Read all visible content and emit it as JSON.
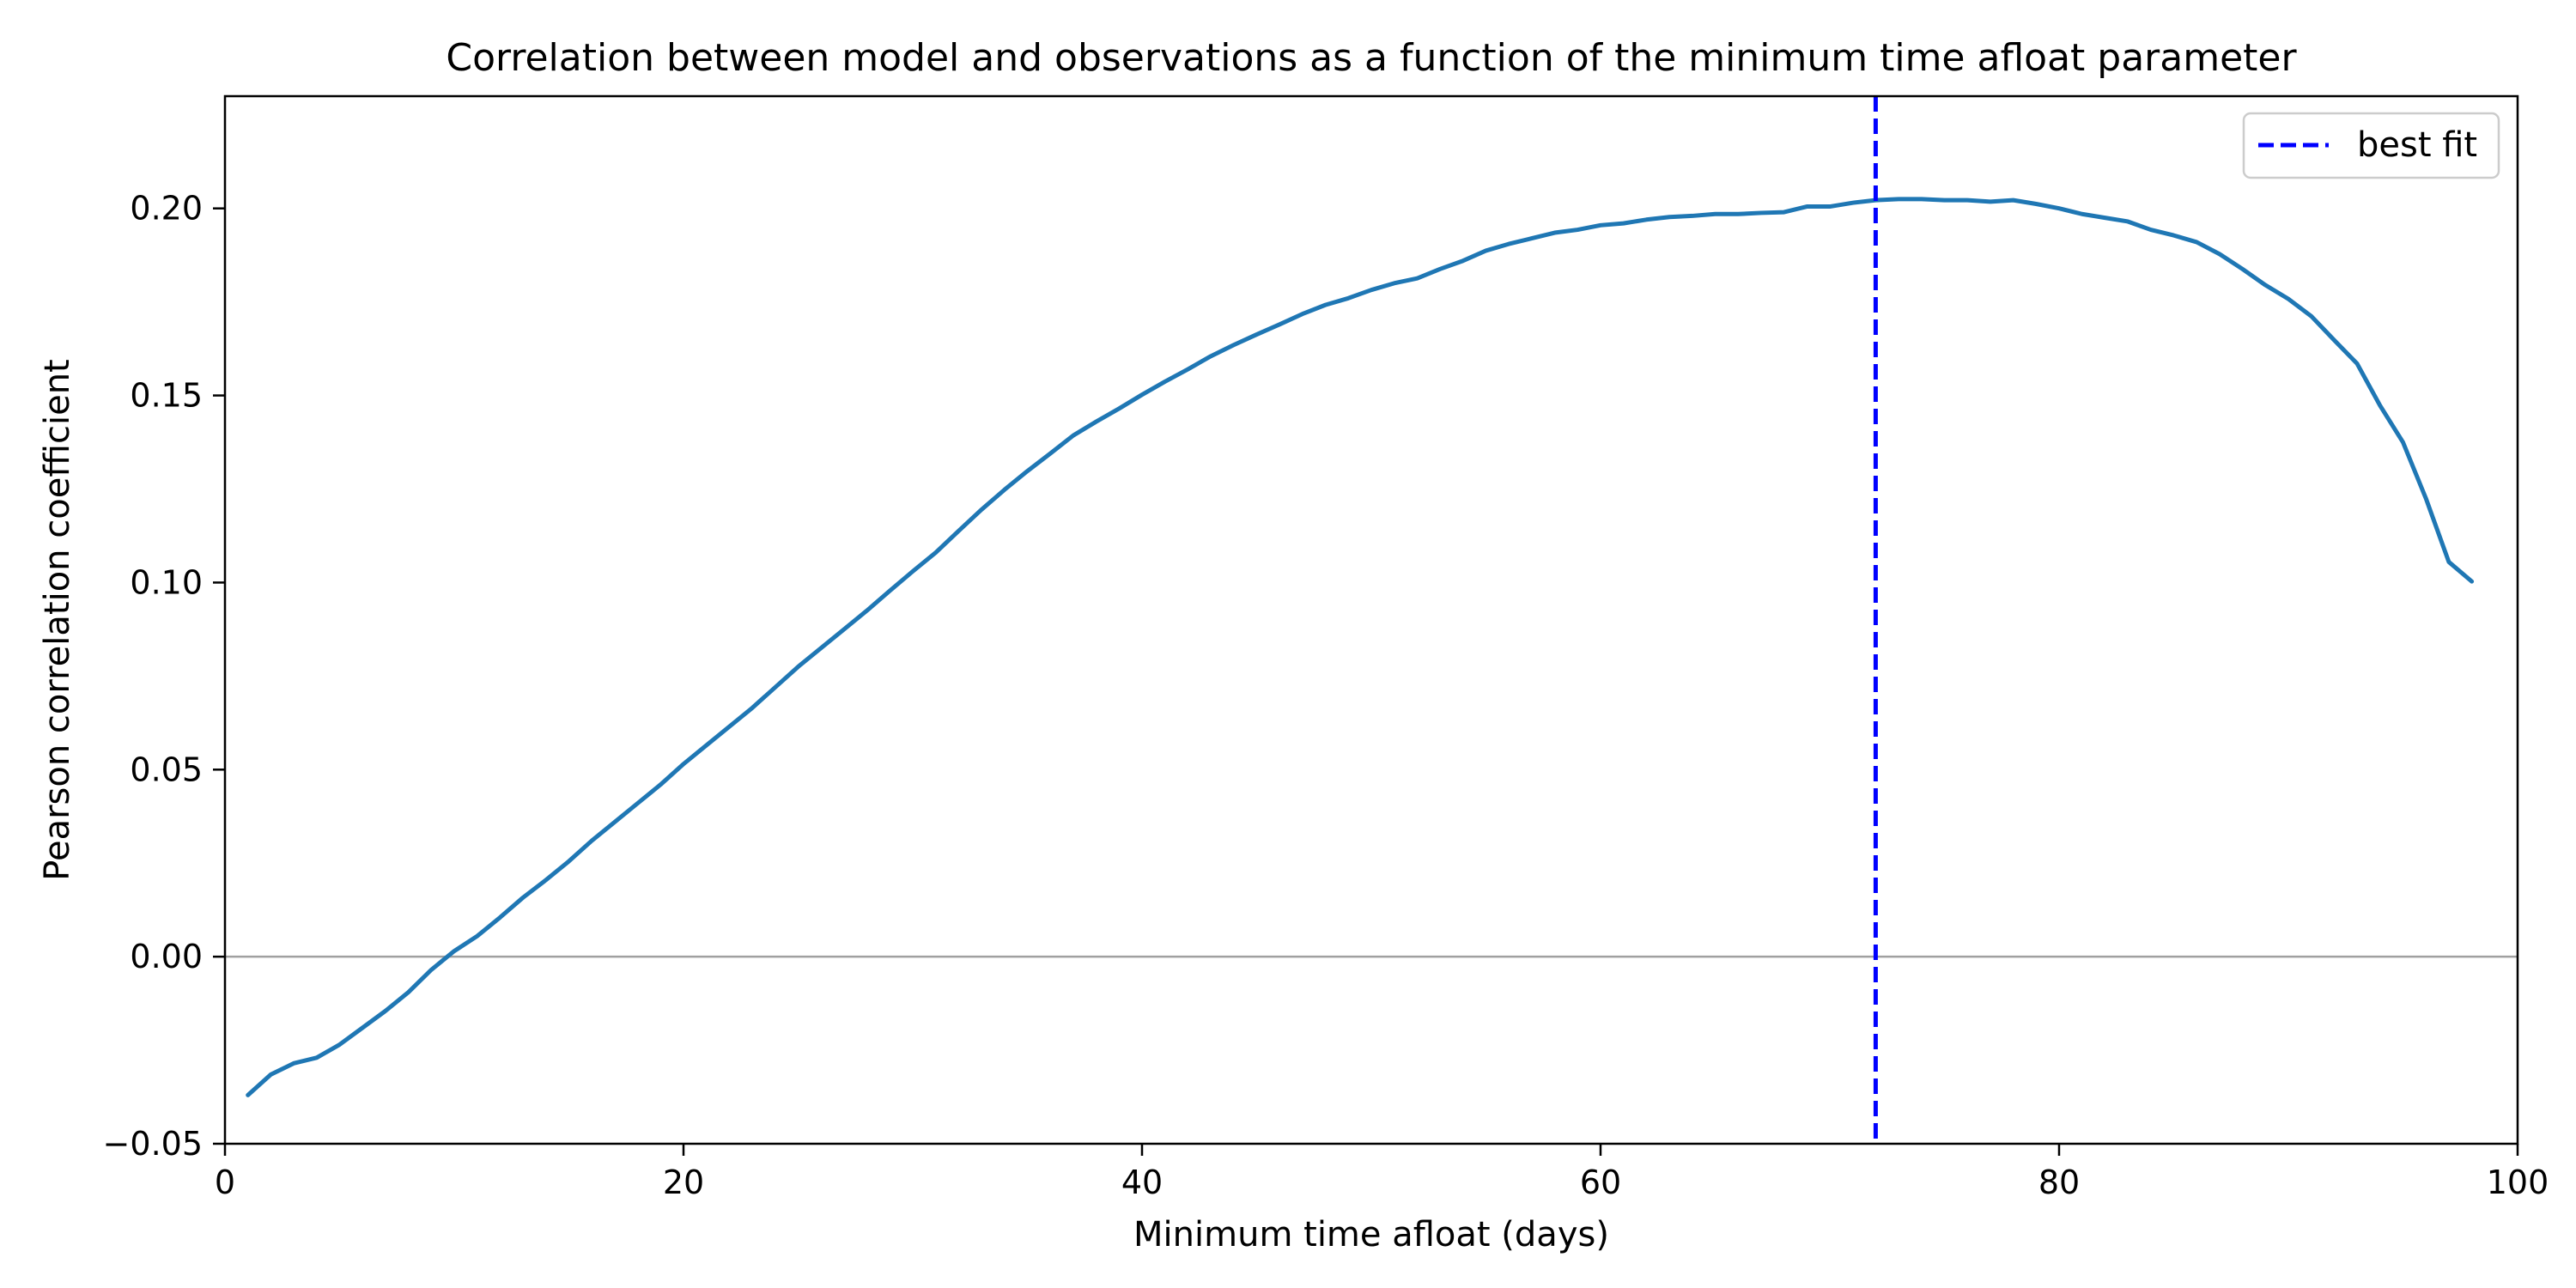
{
  "chart_data": {
    "type": "line",
    "title": "Correlation between model and observations as a function of the minimum time afloat parameter",
    "xlabel": "Minimum time afloat (days)",
    "ylabel": "Pearson correlation coefficient",
    "xlim": [
      0,
      100
    ],
    "ylim": [
      -0.05,
      0.23
    ],
    "xticks": [
      0,
      20,
      40,
      60,
      80,
      100
    ],
    "xtick_labels": [
      "0",
      "20",
      "40",
      "60",
      "80",
      "100"
    ],
    "yticks": [
      -0.05,
      0,
      0.05,
      0.1,
      0.15,
      0.2
    ],
    "ytick_labels": [
      "−0.05",
      "0.00",
      "0.05",
      "0.10",
      "0.15",
      "0.20"
    ],
    "grid": false,
    "zero_line": {
      "y": 0,
      "color": "#a0a0a0"
    },
    "legend": {
      "position": "top-right",
      "entries": [
        "best fit"
      ]
    },
    "best_fit": {
      "x": 72,
      "color": "#0000ff",
      "label": "best fit"
    },
    "series": [
      {
        "color": "#1f77b4",
        "x": [
          1,
          2,
          3,
          4,
          5,
          6,
          7,
          8,
          9,
          10,
          11,
          12,
          13,
          14,
          15,
          16,
          17,
          18,
          19,
          20,
          21,
          22,
          23,
          24,
          25,
          26,
          27,
          28,
          29,
          30,
          31,
          32,
          33,
          34,
          35,
          36,
          37,
          38,
          39,
          40,
          41,
          42,
          43,
          44,
          45,
          46,
          47,
          48,
          49,
          50,
          51,
          52,
          53,
          54,
          55,
          56,
          57,
          58,
          59,
          60,
          61,
          62,
          63,
          64,
          65,
          66,
          67,
          68,
          69,
          70,
          71,
          72,
          73,
          74,
          75,
          76,
          77,
          78,
          79,
          80,
          81,
          82,
          83,
          84,
          85,
          86,
          87,
          88,
          89,
          90,
          91,
          92,
          93,
          94,
          95,
          96,
          97,
          98
        ],
        "y": [
          -0.037,
          -0.0315,
          -0.0285,
          -0.027,
          -0.0235,
          -0.019,
          -0.0145,
          -0.0095,
          -0.0035,
          0.0015,
          0.0055,
          0.0105,
          0.0158,
          0.0205,
          0.0255,
          0.031,
          0.036,
          0.041,
          0.046,
          0.0515,
          0.0565,
          0.0615,
          0.0665,
          0.072,
          0.0775,
          0.0825,
          0.0875,
          0.0925,
          0.0978,
          0.103,
          0.108,
          0.1138,
          0.1195,
          0.1248,
          0.1298,
          0.1345,
          0.1393,
          0.143,
          0.1465,
          0.1502,
          0.1537,
          0.157,
          0.1605,
          0.1635,
          0.1663,
          0.169,
          0.1718,
          0.1742,
          0.176,
          0.1782,
          0.18,
          0.1813,
          0.1838,
          0.186,
          0.1887,
          0.1905,
          0.192,
          0.1935,
          0.1943,
          0.1955,
          0.196,
          0.197,
          0.1977,
          0.198,
          0.1985,
          0.1985,
          0.1988,
          0.199,
          0.2005,
          0.2005,
          0.2015,
          0.2022,
          0.2025,
          0.2025,
          0.2022,
          0.2022,
          0.2018,
          0.2022,
          0.2012,
          0.2,
          0.1985,
          0.1975,
          0.1965,
          0.1943,
          0.1928,
          0.191,
          0.1878,
          0.1838,
          0.1795,
          0.1758,
          0.1712,
          0.1648,
          0.1585,
          0.1473,
          0.1375,
          0.1225,
          0.1055,
          0.1003
        ]
      }
    ]
  }
}
